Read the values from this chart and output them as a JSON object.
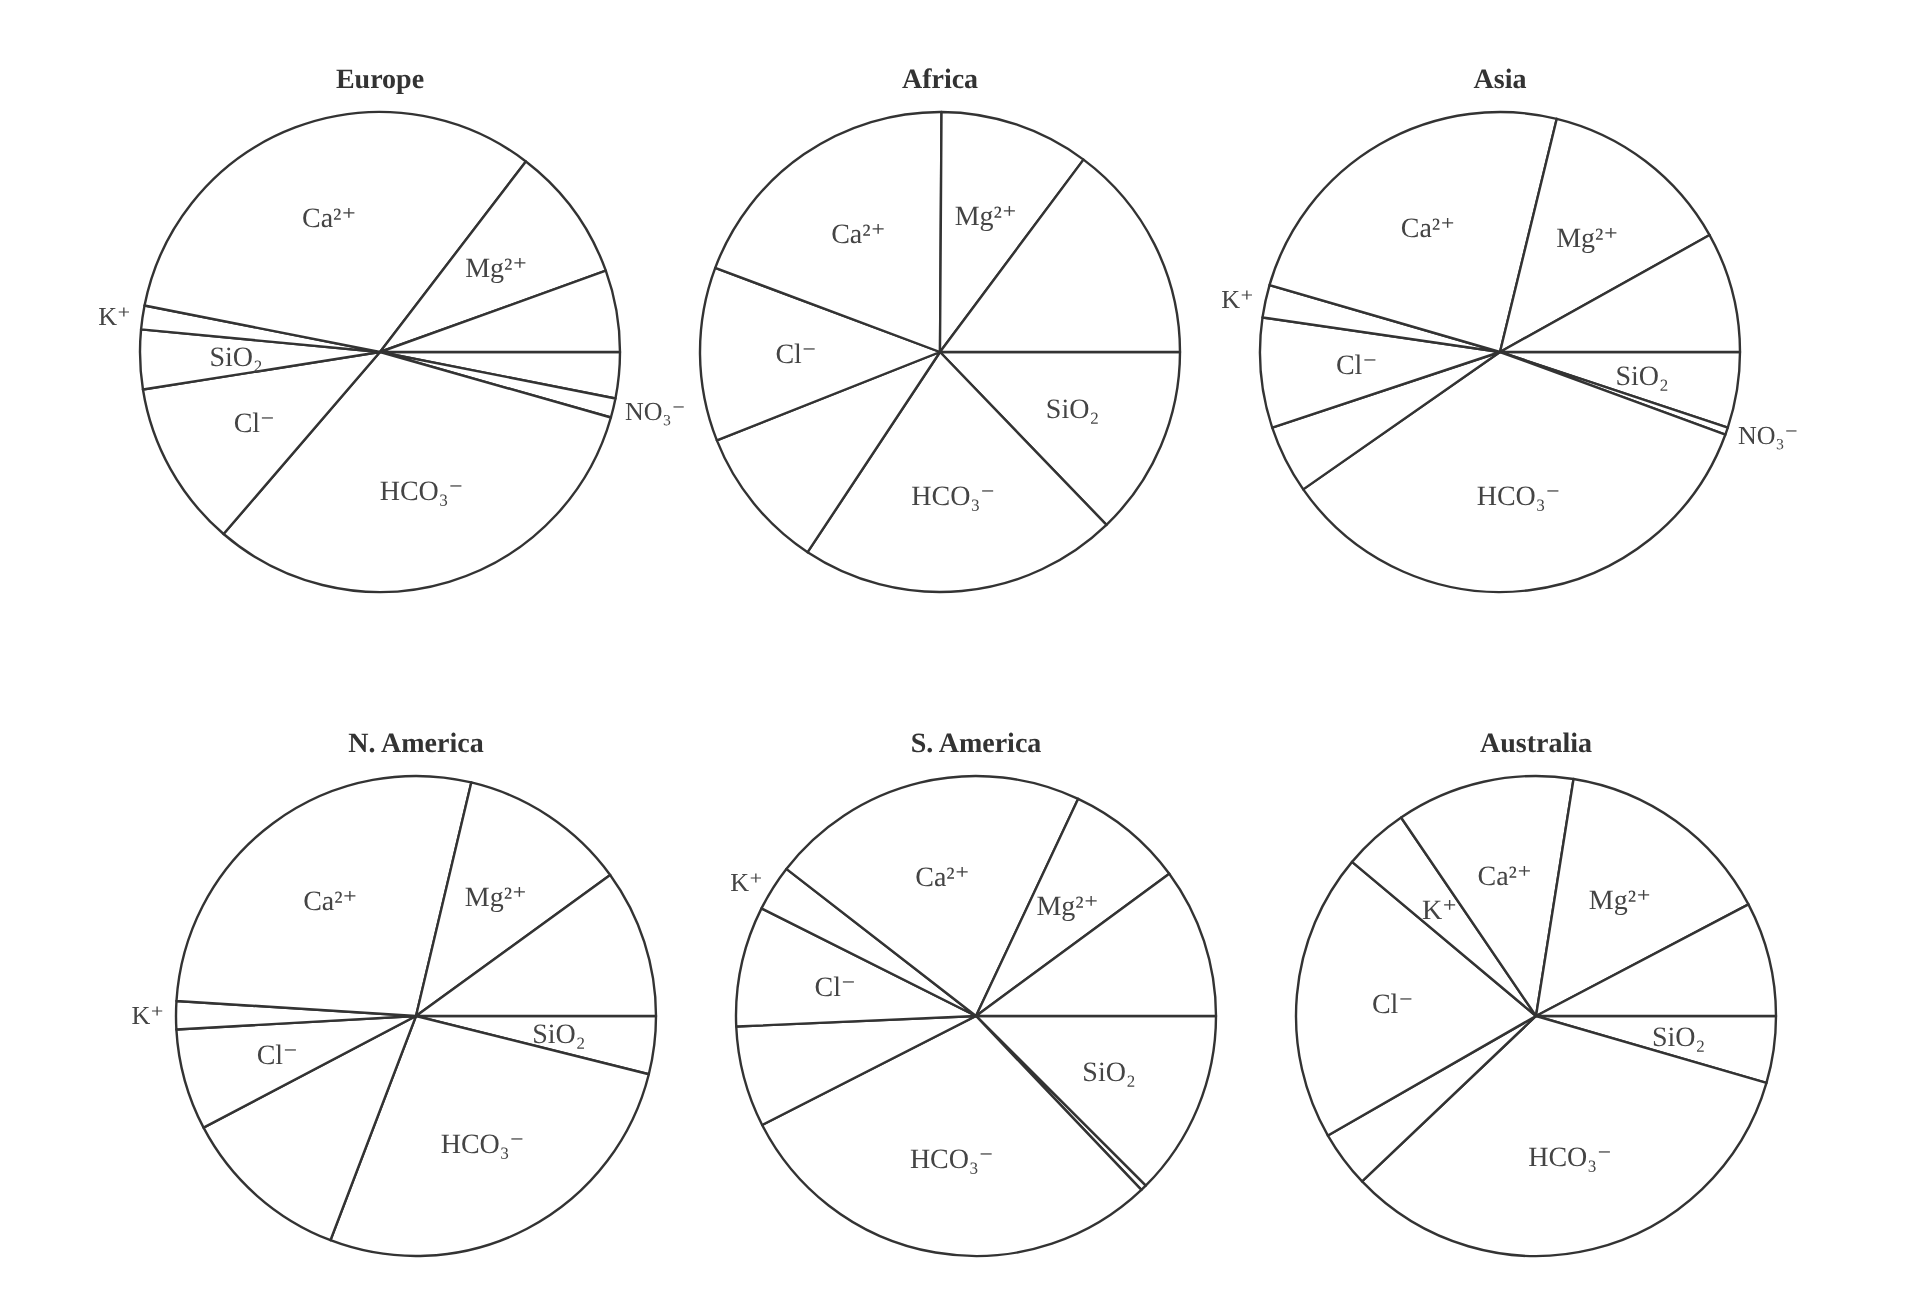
{
  "chart_data": [
    {
      "type": "pie",
      "title": "Europe",
      "categories": [
        null,
        "NO₃⁻",
        "HCO₃⁻",
        "Cl⁻",
        "SiO₂",
        "K⁺",
        "Ca²⁺",
        "Mg²⁺",
        null
      ],
      "values": [
        3.1,
        1.3,
        31.9,
        11.2,
        4.0,
        1.6,
        32.3,
        9.1,
        5.5
      ],
      "colors": [
        "#ffffff",
        "#ffffff",
        "#ffffff",
        "#ffffff",
        "#ffffff",
        "#ffffff",
        "#ffffff",
        "#ffffff",
        "#ffffff"
      ]
    },
    {
      "type": "pie",
      "title": "Africa",
      "categories": [
        "SiO₂",
        "HCO₃⁻",
        null,
        "Cl⁻",
        "Ca²⁺",
        "Mg²⁺",
        null
      ],
      "values": [
        12.8,
        21.5,
        9.7,
        11.7,
        19.4,
        10.1,
        14.8
      ],
      "colors": [
        "#ffffff",
        "#ffffff",
        "#ffffff",
        "#ffffff",
        "#ffffff",
        "#ffffff",
        "#ffffff"
      ]
    },
    {
      "type": "pie",
      "title": "Asia",
      "categories": [
        "SiO₂",
        "NO₃⁻",
        "HCO₃⁻",
        null,
        "Cl⁻",
        "K⁺",
        "Ca²⁺",
        "Mg²⁺",
        null
      ],
      "values": [
        5.1,
        0.5,
        34.7,
        4.6,
        7.4,
        2.2,
        24.3,
        13.1,
        8.1
      ],
      "colors": [
        "#ffffff",
        "#ffffff",
        "#ffffff",
        "#ffffff",
        "#ffffff",
        "#ffffff",
        "#ffffff",
        "#ffffff",
        "#ffffff"
      ]
    },
    {
      "type": "pie",
      "title": "N. America",
      "categories": [
        "SiO₂",
        "HCO₃⁻",
        null,
        "Cl⁻",
        "K⁺",
        "Ca²⁺",
        "Mg²⁺",
        null
      ],
      "values": [
        3.9,
        26.9,
        11.5,
        6.8,
        1.9,
        27.7,
        11.3,
        10.0
      ],
      "colors": [
        "#ffffff",
        "#ffffff",
        "#ffffff",
        "#ffffff",
        "#ffffff",
        "#ffffff",
        "#ffffff",
        "#ffffff"
      ]
    },
    {
      "type": "pie",
      "title": "S. America",
      "categories": [
        "SiO₂",
        null,
        "HCO₃⁻",
        null,
        "Cl⁻",
        "K⁺",
        "Ca²⁺",
        "Mg²⁺",
        null
      ],
      "values": [
        12.5,
        0.4,
        29.6,
        6.8,
        8.1,
        3.1,
        21.5,
        7.9,
        10.1
      ],
      "colors": [
        "#ffffff",
        "#ffffff",
        "#ffffff",
        "#ffffff",
        "#ffffff",
        "#ffffff",
        "#ffffff",
        "#ffffff",
        "#ffffff"
      ]
    },
    {
      "type": "pie",
      "title": "Australia",
      "categories": [
        "SiO₂",
        "HCO₃⁻",
        null,
        "Cl⁻",
        "K⁺",
        "Ca²⁺",
        "Mg²⁺",
        null
      ],
      "values": [
        4.5,
        33.4,
        3.8,
        19.4,
        4.4,
        12.0,
        14.8,
        7.7
      ],
      "colors": [
        "#ffffff",
        "#ffffff",
        "#ffffff",
        "#ffffff",
        "#ffffff",
        "#ffffff",
        "#ffffff",
        "#ffffff"
      ]
    }
  ]
}
